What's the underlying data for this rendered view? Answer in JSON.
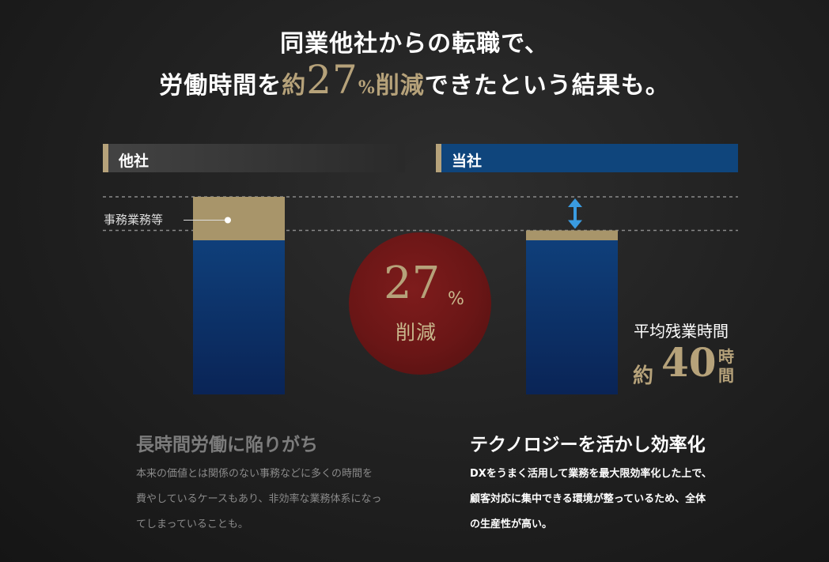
{
  "headline": {
    "line1": "同業他社からの転職で、",
    "line2_before": "労働時間を",
    "line2_prefix": "約",
    "line2_number": "27",
    "line2_unit": "%",
    "line2_highlight": "削減",
    "line2_after": "できたという結果も。"
  },
  "columns": {
    "other": "他社",
    "ours": "当社"
  },
  "annotation": "事務業務等",
  "reduction": {
    "number": "27",
    "unit": "%",
    "label": "削減"
  },
  "average": {
    "label": "平均残業時間",
    "prefix": "約",
    "value": "40",
    "unit": "時間"
  },
  "sections": {
    "other": {
      "title": "長時間労働に陥りがち",
      "lines": [
        "本来の価値とは関係のない事務などに多くの時間を",
        "費やしているケースもあり、非効率な業務体系になっ",
        "てしまっていることも。"
      ]
    },
    "ours": {
      "title": "テクノロジーを活かし効率化",
      "lines": [
        "DXをうまく活用して業務を最大限効率化した上で、",
        "顧客対応に集中できる環境が整っているため、全体",
        "の生産性が高い。"
      ]
    }
  },
  "chart_data": {
    "type": "bar",
    "categories": [
      "他社",
      "当社"
    ],
    "series": [
      {
        "values": [
          78,
          78
        ]
      },
      {
        "name": "事務業務等",
        "values": [
          22,
          5
        ]
      }
    ],
    "ylim": [
      0,
      100
    ],
    "grid": false,
    "colors": {
      "work": "#0f3f7a",
      "work_dark": "#0a2456",
      "admin": "#a8956a",
      "arrow": "#3a9be0",
      "dash": "#8a8a8a"
    }
  }
}
